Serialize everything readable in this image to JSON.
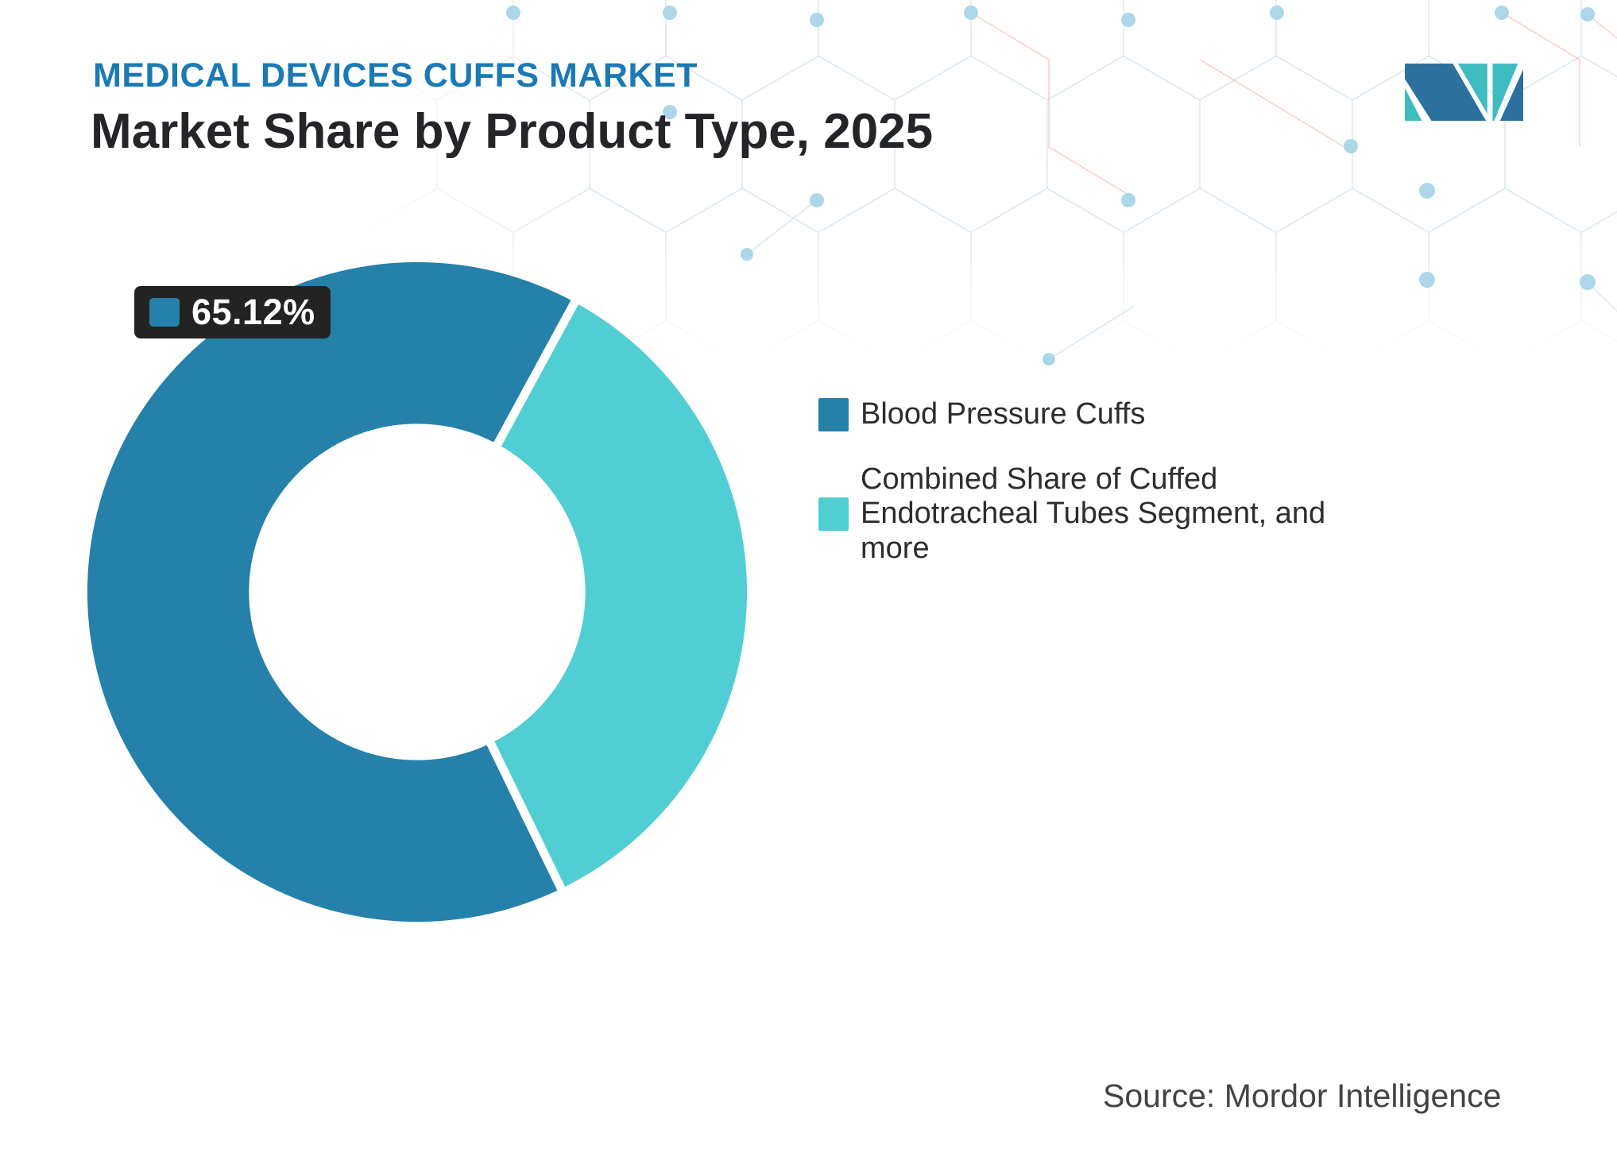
{
  "page": {
    "background": "#ffffff"
  },
  "header": {
    "kicker": "MEDICAL DEVICES CUFFS MARKET",
    "title": "Market Share by Product Type, 2025",
    "kicker_color": "#1b79b4",
    "title_color": "#232528"
  },
  "logo": {
    "name": "mordor-intelligence-logo",
    "dark_color": "#2c719e",
    "teal_color": "#3fbcc0"
  },
  "chart_data": {
    "type": "pie",
    "subtype": "donut",
    "title": "Market Share by Product Type, 2025",
    "categories": [
      "Blood Pressure Cuffs",
      "Combined Share of Cuffed Endotracheal Tubes Segment, and more"
    ],
    "values": [
      65.12,
      34.88
    ],
    "unit": "%",
    "colors": [
      "#2581a9",
      "#51ced3"
    ],
    "donut_hole_ratio": 0.51,
    "rotation_deg": 154.1,
    "gap_color": "#ffffff",
    "legend_position": "right",
    "data_labels": [
      {
        "series": "Blood Pressure Cuffs",
        "text": "65.12%"
      }
    ]
  },
  "annotation": {
    "value_label": "65.12%",
    "swatch_color": "#2581a9",
    "bg_color": "#232323",
    "text_color": "#ffffff"
  },
  "legend": {
    "items": [
      {
        "label": "Blood Pressure Cuffs",
        "color": "#2581a9"
      },
      {
        "label": "Combined Share of Cuffed\nEndotracheal Tubes Segment, and\nmore",
        "color": "#51ced3"
      }
    ]
  },
  "footer": {
    "source": "Source: Mordor Intelligence"
  },
  "decor": {
    "pattern_line_color": "#dce9f2",
    "pattern_accent_color": "#f2b3a6",
    "dot_color": "#abd7e9"
  }
}
